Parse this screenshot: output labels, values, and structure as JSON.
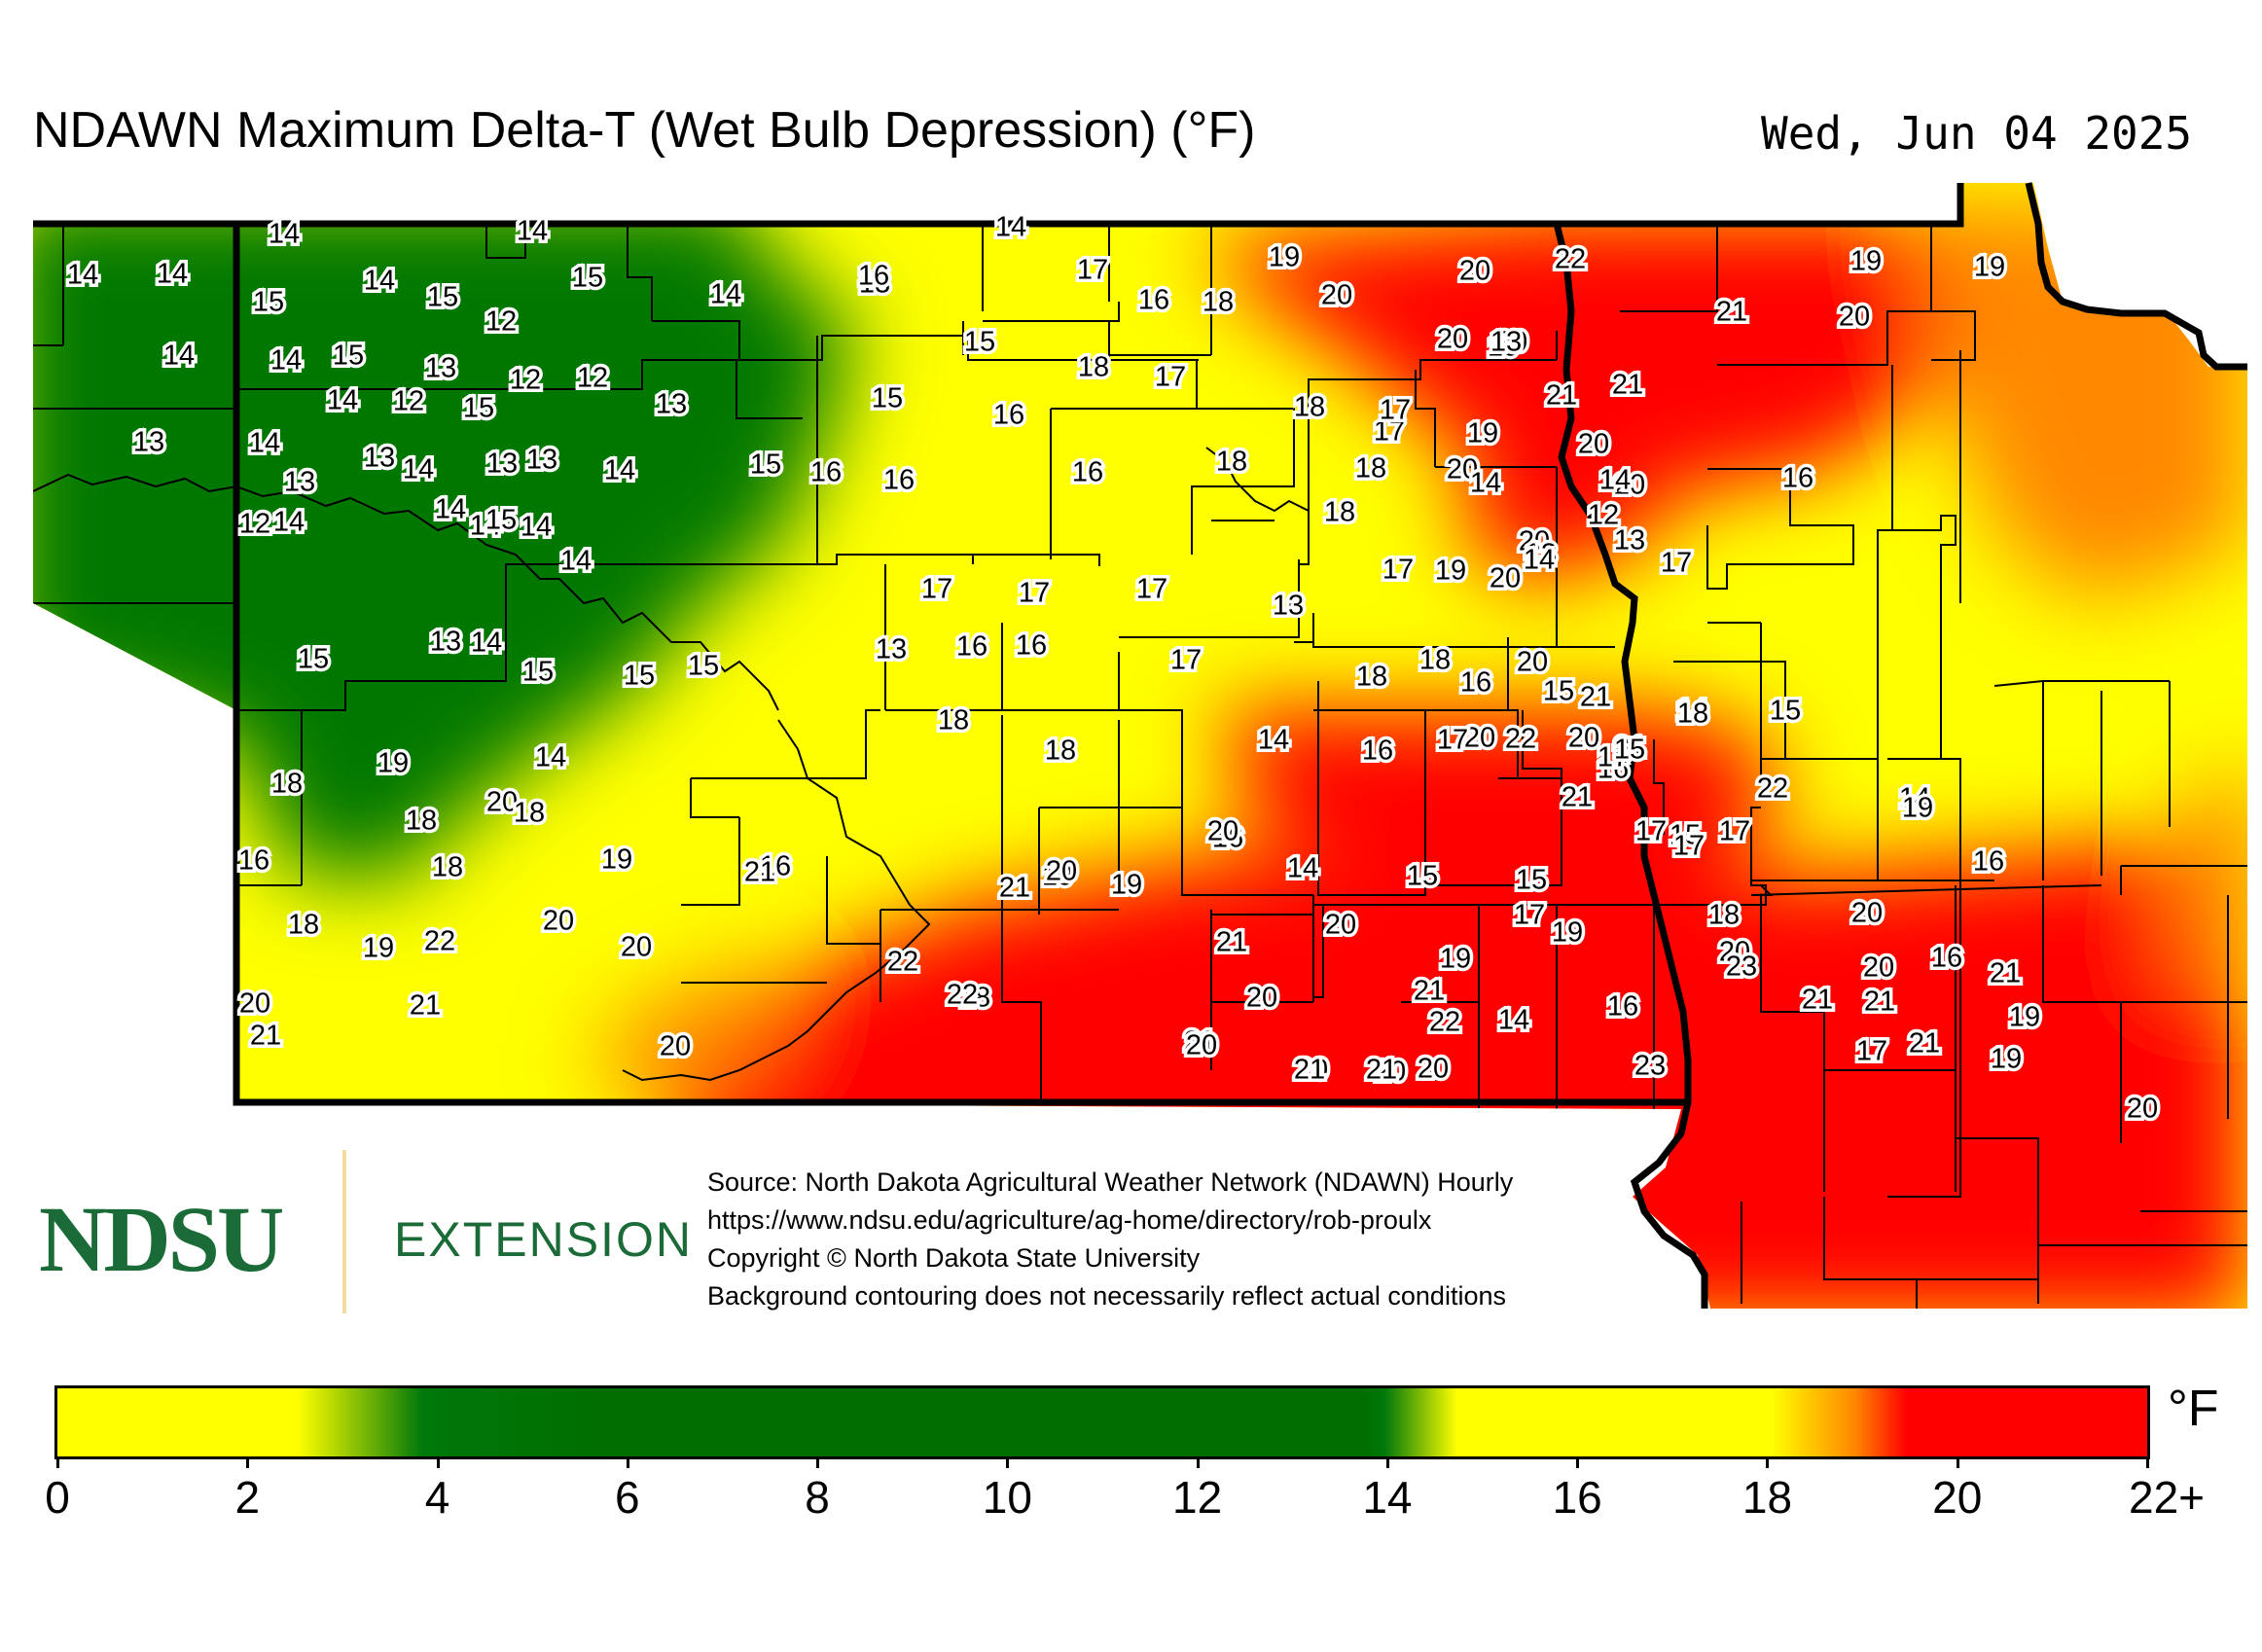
{
  "title": "NDAWN Maximum Delta-T (Wet Bulb Depression) (°F)",
  "date": "Wed, Jun 04 2025",
  "logo": {
    "ndsu": "NDSU",
    "extension": "EXTENSION"
  },
  "source_lines": [
    "Source: North Dakota Agricultural Weather Network (NDAWN) Hourly",
    "https://www.ndsu.edu/agriculture/ag-home/directory/rob-proulx",
    "Copyright © North Dakota State University",
    "Background contouring does not necessarily reflect actual conditions"
  ],
  "colorbar": {
    "unit": "°F",
    "ticks": [
      "0",
      "2",
      "4",
      "6",
      "8",
      "10",
      "12",
      "14",
      "16",
      "18",
      "20",
      "22+"
    ],
    "colors": {
      "low": "#ffff00",
      "mid": "#006e00",
      "high": "#ff0000",
      "transition": "#ff8800"
    }
  },
  "stations": [
    "14",
    "14",
    "14",
    "14",
    "14",
    "14",
    "15",
    "15",
    "15",
    "13",
    "14",
    "16",
    "17",
    "16",
    "18",
    "19",
    "20",
    "22",
    "20",
    "19",
    "19",
    "14",
    "15",
    "14",
    "15",
    "12",
    "21",
    "20",
    "15",
    "20",
    "20",
    "19",
    "18",
    "17",
    "13",
    "12",
    "12",
    "14",
    "12",
    "13",
    "16",
    "17",
    "18",
    "21",
    "21",
    "13",
    "14",
    "15",
    "13",
    "14",
    "13",
    "13",
    "14",
    "15",
    "16",
    "16",
    "16",
    "18",
    "18",
    "20",
    "17",
    "19",
    "18",
    "20",
    "20",
    "13",
    "12",
    "14",
    "20",
    "19",
    "16",
    "14",
    "12",
    "13",
    "13",
    "13",
    "14",
    "14",
    "14",
    "15",
    "14",
    "14",
    "13",
    "14",
    "14",
    "14",
    "14",
    "17",
    "17",
    "17",
    "17",
    "19",
    "20",
    "17",
    "16",
    "13",
    "13",
    "14",
    "15",
    "15",
    "15",
    "15",
    "13",
    "16",
    "16",
    "17",
    "18",
    "18",
    "18",
    "18",
    "20",
    "14",
    "15",
    "16",
    "15",
    "21",
    "20",
    "18",
    "18",
    "19",
    "20",
    "18",
    "14",
    "14",
    "16",
    "17",
    "22",
    "20",
    "16",
    "21",
    "22",
    "21",
    "17",
    "14",
    "15",
    "16",
    "19",
    "18",
    "19",
    "16",
    "15",
    "17",
    "16",
    "18",
    "17",
    "17",
    "19",
    "21",
    "20",
    "21",
    "20",
    "19",
    "14",
    "15",
    "15",
    "16",
    "17",
    "18",
    "19",
    "22",
    "20",
    "20",
    "21",
    "20",
    "19",
    "19",
    "20",
    "18",
    "16",
    "20",
    "21",
    "22",
    "18",
    "20",
    "19",
    "20",
    "22",
    "21",
    "23",
    "21",
    "21",
    "14",
    "16",
    "17",
    "19",
    "20",
    "20",
    "23",
    "20",
    "21",
    "21",
    "20",
    "21",
    "20",
    "21",
    "20",
    "22",
    "21",
    "21",
    "20"
  ]
}
